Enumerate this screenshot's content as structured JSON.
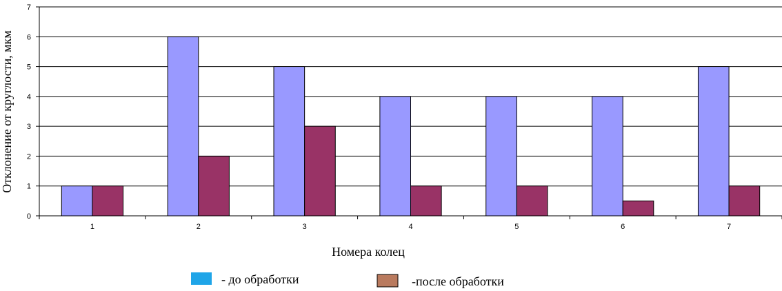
{
  "chart_data": {
    "type": "bar",
    "categories": [
      "1",
      "2",
      "3",
      "4",
      "5",
      "6",
      "7"
    ],
    "series": [
      {
        "name": "- до обработки",
        "values": [
          1,
          6,
          5,
          4,
          4,
          4,
          5
        ],
        "color": "#9999ff"
      },
      {
        "name": "-после обработки",
        "values": [
          1,
          2,
          3,
          1,
          1,
          0.5,
          1
        ],
        "color": "#993366"
      }
    ],
    "xlabel": "Номера колец",
    "ylabel": "Отклонение от круглости, мкм",
    "ylim": [
      0,
      7
    ],
    "yticks": [
      "0",
      "1",
      "2",
      "3",
      "4",
      "5",
      "6",
      "7"
    ],
    "grid": true,
    "legend_placement": "bottom",
    "legend_colors": [
      "#1fa5e8",
      "#b97a5e"
    ]
  }
}
